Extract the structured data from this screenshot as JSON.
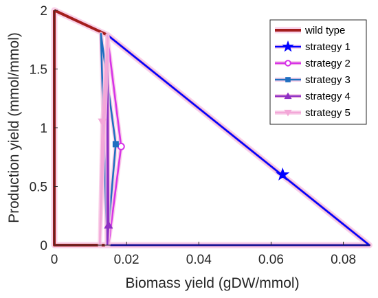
{
  "chart_data": {
    "type": "line",
    "xlabel": "Biomass yield (gDW/mmol)",
    "ylabel": "Production yield (mmol/mmol)",
    "xlim": [
      0,
      0.0875
    ],
    "ylim": [
      0,
      2
    ],
    "x_ticks": [
      0,
      0.02,
      0.04,
      0.06,
      0.08
    ],
    "x_tick_labels": [
      "0",
      "0.02",
      "0.04",
      "0.06",
      "0.08"
    ],
    "y_ticks": [
      0,
      0.5,
      1,
      1.5,
      2
    ],
    "y_tick_labels": [
      "0",
      "0.5",
      "1",
      "1.5",
      "2"
    ],
    "grid": false,
    "legend_position": "top-right",
    "series": [
      {
        "name": "wild type",
        "color": "#a41d1d",
        "marker": "none",
        "x": [
          0,
          0.0147,
          0.0872,
          0,
          0
        ],
        "y": [
          2,
          1.79,
          0,
          0,
          2
        ]
      },
      {
        "name": "strategy 1",
        "color": "#0000ff",
        "marker": "star",
        "x": [
          0.0145,
          0.0147,
          0.0872,
          0.0145
        ],
        "y": [
          0,
          1.79,
          0,
          0
        ],
        "marker_x": [
          0.0632
        ],
        "marker_y": [
          0.6
        ]
      },
      {
        "name": "strategy 2",
        "color": "#d633e8",
        "marker": "circle",
        "x": [
          0.0148,
          0.0147,
          0.0185,
          0.015,
          0.0148
        ],
        "y": [
          0,
          1.78,
          0.84,
          0,
          0
        ],
        "marker_x": [
          0.0185
        ],
        "marker_y": [
          0.84
        ]
      },
      {
        "name": "strategy 3",
        "color": "#1f6fc0",
        "marker": "square",
        "x": [
          0.0146,
          0.0129,
          0.017,
          0.0146
        ],
        "y": [
          0,
          1.8,
          0.86,
          0
        ],
        "marker_x": [
          0.017
        ],
        "marker_y": [
          0.86
        ]
      },
      {
        "name": "strategy 4",
        "color": "#8f2fc4",
        "marker": "triangle-up",
        "x": [
          0.0147,
          0.0147,
          0.015,
          0.0147
        ],
        "y": [
          0,
          1.78,
          0.17,
          0
        ],
        "marker_x": [
          0.015
        ],
        "marker_y": [
          0.17
        ]
      },
      {
        "name": "strategy 5",
        "color": "#f3a7d8",
        "marker": "triangle-down",
        "x": [
          0.0126,
          0.0148,
          0.0133,
          0.0126
        ],
        "y": [
          0,
          1.77,
          1.05,
          0
        ],
        "marker_x": [
          0.0133
        ],
        "marker_y": [
          1.05
        ]
      }
    ]
  }
}
